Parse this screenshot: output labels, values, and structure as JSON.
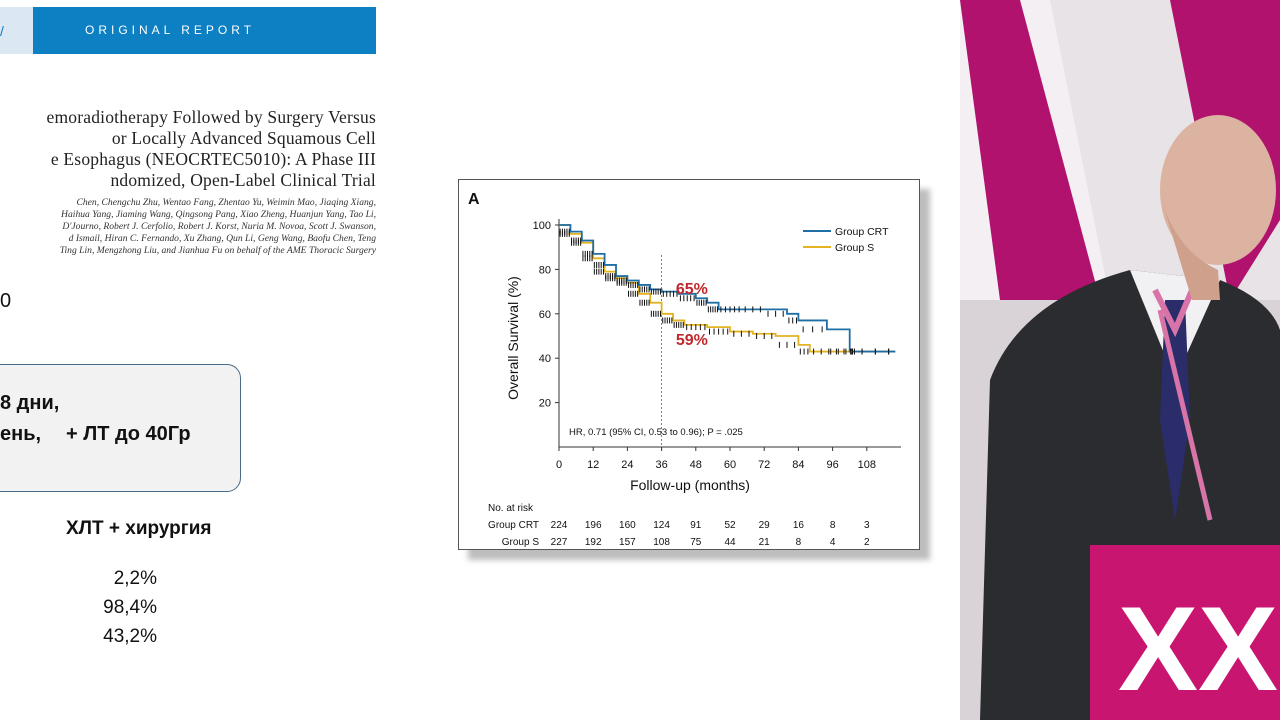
{
  "slide": {
    "banner_chevron": "/",
    "banner_text": "ORIGINAL REPORT",
    "paper_title_lines": [
      "emoradiotherapy Followed by Surgery Versus",
      "or Locally Advanced Squamous Cell",
      "e Esophagus (NEOCRTEC5010): A Phase III",
      "ndomized, Open-Label Clinical Trial"
    ],
    "author_lines": [
      "Chen, Chengchu Zhu, Wentao Fang, Zhentao Yu, Weimin Mao, Jiaqing Xiang,",
      "Haihua Yang, Jiaming Wang, Qingsong Pang, Xiao Zheng, Huanjun Yang, Tao Li,",
      "D'Journo, Robert J. Cerfolio, Robert J. Korst, Nuria M. Novoa, Scott J. Swanson,",
      "d Ismail, Hiran C. Fernando, Xu Zhang, Qun Li, Geng Wang, Baofu Chen, Teng",
      "Ting Lin, Mengzhong Liu, and Jianhua Fu on behalf of the AME Thoracic Surgery"
    ],
    "left_fragment": "0",
    "regimen_line1": "8 дни,",
    "regimen_line2": "ень,",
    "regimen_rt": "+ ЛТ до 40Гр",
    "column_header": "ХЛТ + хирургия",
    "values": [
      "2,2%",
      "98,4%",
      "43,2%"
    ]
  },
  "chart_data": {
    "type": "line",
    "panel_label": "A",
    "title": "",
    "xlabel": "Follow-up (months)",
    "ylabel": "Overall Survival (%)",
    "xlim": [
      0,
      120
    ],
    "ylim": [
      0,
      100
    ],
    "x_ticks": [
      0,
      12,
      24,
      36,
      48,
      60,
      72,
      84,
      96,
      108
    ],
    "y_ticks": [
      20,
      40,
      60,
      80,
      100
    ],
    "series": [
      {
        "name": "Group CRT",
        "color": "#1f6ea5",
        "x": [
          0,
          4,
          8,
          12,
          16,
          20,
          24,
          28,
          32,
          36,
          42,
          48,
          52,
          56,
          64,
          72,
          80,
          84,
          94,
          102,
          104,
          118
        ],
        "y": [
          100,
          97,
          93,
          87,
          82,
          77,
          75,
          73,
          71,
          70,
          69,
          67,
          65,
          62,
          62,
          62,
          60,
          57,
          53,
          43,
          43,
          43
        ]
      },
      {
        "name": "Group S",
        "color": "#e3b321",
        "x": [
          0,
          4,
          8,
          12,
          16,
          20,
          24,
          28,
          32,
          36,
          40,
          44,
          52,
          60,
          68,
          76,
          84,
          88,
          96,
          104,
          118
        ],
        "y": [
          100,
          96,
          92,
          85,
          79,
          76,
          74,
          69,
          65,
          60,
          57,
          55,
          54,
          52,
          51,
          50,
          46,
          43,
          43,
          43,
          43
        ]
      }
    ],
    "reference_line_x": 36,
    "annotations": [
      {
        "text": "65%",
        "x": 41,
        "y": 69,
        "color": "#c0282d"
      },
      {
        "text": "59%",
        "x": 41,
        "y": 46,
        "color": "#c0282d"
      }
    ],
    "stat_text": "HR, 0.71 (95% CI, 0.53 to 0.96); P = .025",
    "risk_table": {
      "title": "No. at risk",
      "rows": [
        {
          "label": "Group CRT",
          "values": [
            224,
            196,
            160,
            124,
            91,
            52,
            29,
            16,
            8,
            3
          ]
        },
        {
          "label": "Group S",
          "values": [
            227,
            192,
            157,
            108,
            75,
            44,
            21,
            8,
            4,
            2
          ]
        }
      ]
    }
  },
  "photo": {
    "backdrop_text": "XXII"
  }
}
